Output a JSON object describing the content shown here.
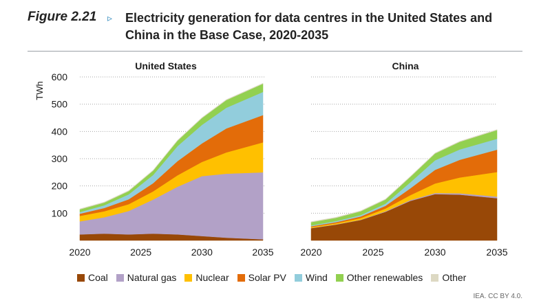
{
  "header": {
    "figure_label": "Figure 2.21",
    "arrow": "▹",
    "title_line1": "Electricity generation for data centres in the United States and",
    "title_line2": "China in the Base Case, 2020-2035"
  },
  "source": "IEA. CC BY 4.0.",
  "chart_data": [
    {
      "type": "area",
      "stacked": true,
      "title": "United States",
      "ylabel": "TWh",
      "ylim": [
        0,
        600
      ],
      "yticks": [
        100,
        200,
        300,
        400,
        500,
        600
      ],
      "xticks": [
        2020,
        2025,
        2030,
        2035
      ],
      "x": [
        2020,
        2022,
        2024,
        2026,
        2028,
        2030,
        2032,
        2035
      ],
      "series": [
        {
          "name": "Coal",
          "color": "#984807",
          "values": [
            22,
            25,
            22,
            25,
            22,
            16,
            10,
            4
          ]
        },
        {
          "name": "Natural gas",
          "color": "#b2a1c7",
          "values": [
            48,
            60,
            86,
            125,
            175,
            220,
            235,
            246
          ]
        },
        {
          "name": "Nuclear",
          "color": "#ffc000",
          "values": [
            20,
            22,
            25,
            30,
            42,
            52,
            78,
            110
          ]
        },
        {
          "name": "Solar PV",
          "color": "#e36c09",
          "values": [
            8,
            12,
            18,
            30,
            52,
            68,
            88,
            100
          ]
        },
        {
          "name": "Wind",
          "color": "#92cddc",
          "values": [
            6,
            10,
            18,
            30,
            55,
            68,
            76,
            85
          ]
        },
        {
          "name": "Other renewables",
          "color": "#92d050",
          "values": [
            10,
            10,
            12,
            16,
            20,
            25,
            28,
            30
          ]
        },
        {
          "name": "Other",
          "color": "#ddd9c3",
          "values": [
            2,
            2,
            2,
            2,
            2,
            2,
            2,
            2
          ]
        }
      ]
    },
    {
      "type": "area",
      "stacked": true,
      "title": "China",
      "ylabel": "TWh",
      "ylim": [
        0,
        600
      ],
      "yticks": [
        100,
        200,
        300,
        400,
        500,
        600
      ],
      "xticks": [
        2020,
        2025,
        2030,
        2035
      ],
      "x": [
        2020,
        2022,
        2024,
        2026,
        2028,
        2030,
        2032,
        2035
      ],
      "series": [
        {
          "name": "Coal",
          "color": "#984807",
          "values": [
            45,
            58,
            75,
            105,
            145,
            170,
            168,
            155
          ]
        },
        {
          "name": "Natural gas",
          "color": "#b2a1c7",
          "values": [
            1,
            1,
            1,
            2,
            3,
            4,
            5,
            6
          ]
        },
        {
          "name": "Nuclear",
          "color": "#ffc000",
          "values": [
            3,
            4,
            6,
            10,
            18,
            35,
            58,
            90
          ]
        },
        {
          "name": "Solar PV",
          "color": "#e36c09",
          "values": [
            3,
            4,
            6,
            10,
            25,
            50,
            65,
            82
          ]
        },
        {
          "name": "Wind",
          "color": "#92cddc",
          "values": [
            3,
            4,
            5,
            8,
            22,
            35,
            38,
            40
          ]
        },
        {
          "name": "Other renewables",
          "color": "#92d050",
          "values": [
            12,
            12,
            14,
            15,
            20,
            25,
            28,
            32
          ]
        },
        {
          "name": "Other",
          "color": "#ddd9c3",
          "values": [
            2,
            2,
            2,
            2,
            2,
            2,
            2,
            2
          ]
        }
      ]
    }
  ]
}
